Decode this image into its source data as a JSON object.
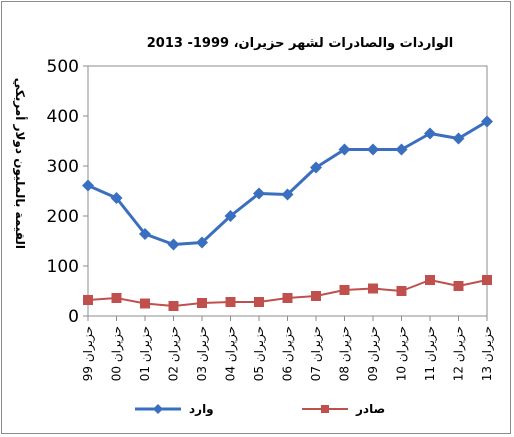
{
  "chart_data": {
    "type": "line",
    "title": "الواردات والصادرات لشهر حزيران،  1999- 2013",
    "ylabel": "القيمة بالمليون دولار أمريكي",
    "xlabel": "",
    "categories": [
      "حزيران 99",
      "حزيران 00",
      "حزيران 01",
      "حزيران 02",
      "حزيران 03",
      "حزيران 04",
      "حزيران 05",
      "حزيران 06",
      "حزيران 07",
      "حزيران 08",
      "حزيران 09",
      "حزيران 10",
      "حزيران 11",
      "حزيران 12",
      "حزيران 13"
    ],
    "ylim": [
      0,
      500
    ],
    "yticks": [
      "0",
      "100",
      "200",
      "300",
      "400",
      "500"
    ],
    "grid": false,
    "legend_position": "bottom",
    "series": [
      {
        "name": "وارد",
        "color": "#3a6fbf",
        "marker": "diamond",
        "values": [
          261,
          236,
          164,
          143,
          147,
          200,
          245,
          243,
          297,
          333,
          333,
          333,
          365,
          355,
          389
        ]
      },
      {
        "name": "صادر",
        "color": "#c0504d",
        "marker": "square",
        "values": [
          32,
          36,
          25,
          20,
          26,
          28,
          28,
          36,
          40,
          52,
          55,
          50,
          72,
          60,
          72
        ]
      }
    ]
  }
}
